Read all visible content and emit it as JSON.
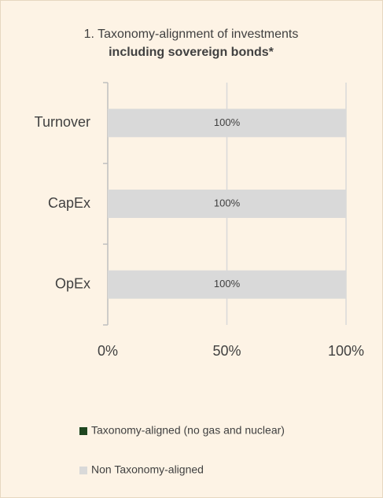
{
  "chart_data": {
    "type": "stacked_barh",
    "title": "1. Taxonomy-alignment of investments",
    "subtitle": "including sovereign bonds*",
    "categories": [
      "Turnover",
      "CapEx",
      "OpEx"
    ],
    "series": [
      {
        "name": "Taxonomy-aligned (no gas and nuclear)",
        "color": "#1e4620",
        "values": [
          0,
          0,
          0
        ]
      },
      {
        "name": "Non Taxonomy-aligned",
        "color": "#d9d9d9",
        "values": [
          100,
          100,
          100
        ],
        "value_labels": [
          "100%",
          "100%",
          "100%"
        ]
      }
    ],
    "xlim": [
      0,
      100
    ],
    "xticks": [
      {
        "value": 0,
        "label": "0%"
      },
      {
        "value": 50,
        "label": "50%"
      },
      {
        "value": 100,
        "label": "100%"
      }
    ],
    "grid": true
  }
}
